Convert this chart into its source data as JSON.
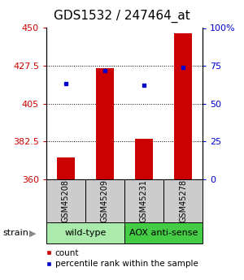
{
  "title": "GDS1532 / 247464_at",
  "samples": [
    "GSM45208",
    "GSM45209",
    "GSM45231",
    "GSM45278"
  ],
  "red_values": [
    373,
    426,
    384,
    447
  ],
  "blue_pct_values": [
    63,
    72,
    62,
    74
  ],
  "ylim_left": [
    360,
    450
  ],
  "ylim_right": [
    0,
    100
  ],
  "yticks_left": [
    360,
    382.5,
    405,
    427.5,
    450
  ],
  "ytick_labels_left": [
    "360",
    "382.5",
    "405",
    "427.5",
    "450"
  ],
  "yticks_right": [
    0,
    25,
    50,
    75,
    100
  ],
  "ytick_labels_right": [
    "0",
    "25",
    "50",
    "75",
    "100%"
  ],
  "hgrid_values": [
    382.5,
    405,
    427.5
  ],
  "bar_color": "#cc0000",
  "dot_color": "#0000cc",
  "sample_box_color": "#cccccc",
  "group_colors": [
    "#aaeaaa",
    "#44cc44"
  ],
  "title_fontsize": 11,
  "tick_fontsize": 8,
  "strain_label": "strain",
  "legend_items": [
    "count",
    "percentile rank within the sample"
  ],
  "group_spans": [
    [
      0,
      1,
      "wild-type"
    ],
    [
      2,
      3,
      "AOX anti-sense"
    ]
  ]
}
